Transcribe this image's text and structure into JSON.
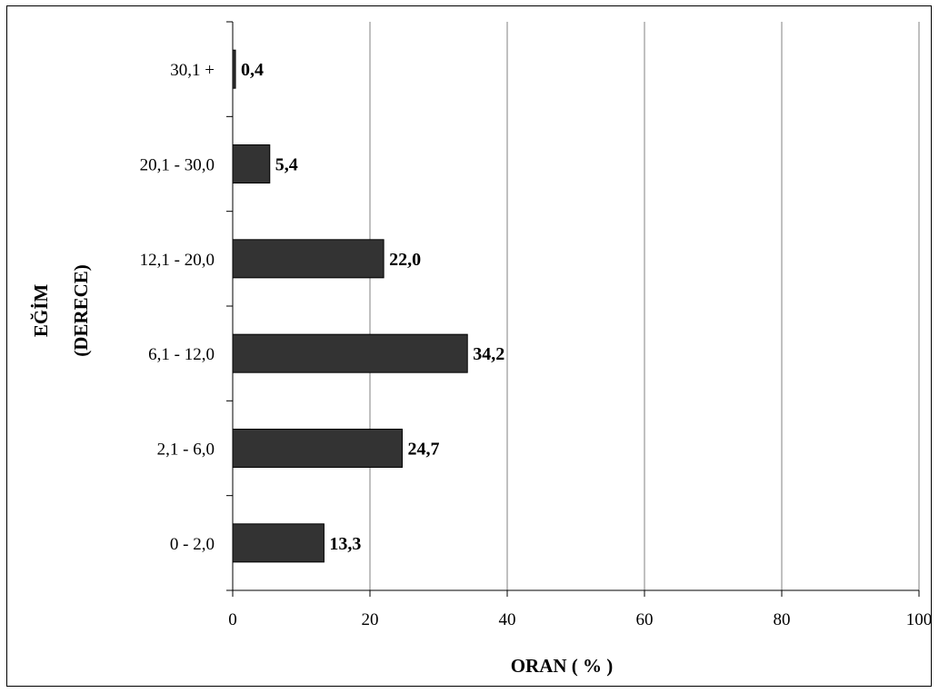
{
  "chart_data": {
    "type": "bar",
    "orientation": "horizontal",
    "categories": [
      "0 - 2,0",
      "2,1 - 6,0",
      "6,1 - 12,0",
      "12,1 - 20,0",
      "20,1 - 30,0",
      "30,1 +"
    ],
    "values": [
      13.3,
      24.7,
      34.2,
      22.0,
      5.4,
      0.4
    ],
    "value_labels": [
      "13,3",
      "24,7",
      "34,2",
      "22,0",
      "5,4",
      "0,4"
    ],
    "xlabel": "ORAN ( % )",
    "ylabel_lines": [
      "EĞİM",
      "(DERECE)"
    ],
    "xlim": [
      0,
      100
    ],
    "x_ticks": [
      "0",
      "20",
      "40",
      "60",
      "80",
      "100"
    ],
    "grid": "vertical",
    "bar_color": "#333333",
    "legend": "none"
  }
}
